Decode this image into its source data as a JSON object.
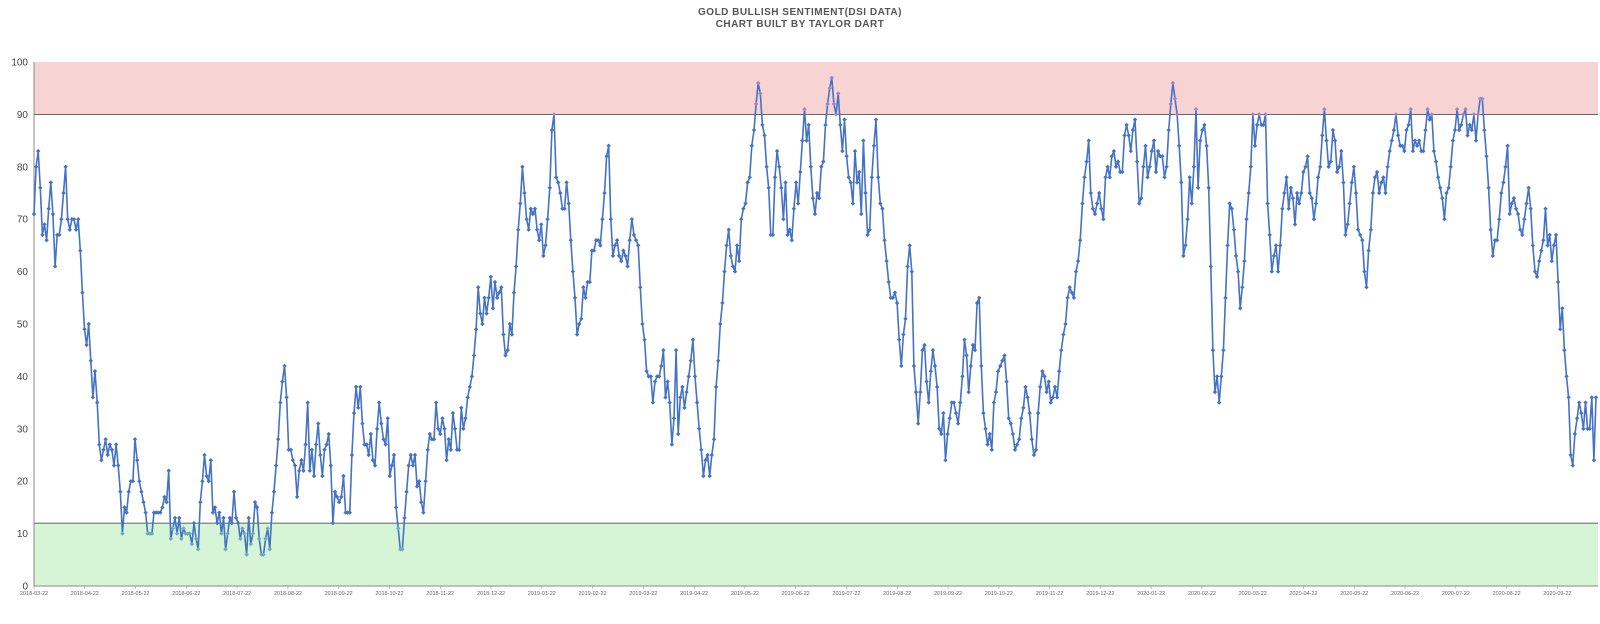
{
  "chart_data": {
    "type": "line",
    "title": "GOLD BULLISH SENTIMENT(DSI DATA)",
    "subtitle": "CHART BUILT BY TAYLOR DART",
    "xlabel": "",
    "ylabel": "",
    "ylim": [
      0,
      100
    ],
    "yticks": [
      "0",
      "10",
      "20",
      "30",
      "40",
      "50",
      "60",
      "70",
      "80",
      "90",
      "100"
    ],
    "xticks": [
      "2018-03-22",
      "2018-04-22",
      "2018-05-22",
      "2018-06-22",
      "2018-07-22",
      "2018-08-22",
      "2018-09-22",
      "2018-10-22",
      "2018-11-22",
      "2018-12-22",
      "2019-01-22",
      "2019-02-22",
      "2019-03-22",
      "2019-04-22",
      "2019-05-22",
      "2019-06-22",
      "2019-07-22",
      "2019-08-22",
      "2019-09-22",
      "2019-10-22",
      "2019-11-22",
      "2019-12-22",
      "2020-01-22",
      "2020-02-22",
      "2020-03-22",
      "2020-04-22",
      "2020-05-22",
      "2020-06-22",
      "2020-07-22",
      "2020-08-22",
      "2020-09-22"
    ],
    "grid": false,
    "bands": [
      {
        "name": "extreme-bullish-zone",
        "from": 90,
        "to": 100,
        "color": "#f4c4c4"
      },
      {
        "name": "extreme-bearish-zone",
        "from": 0,
        "to": 12,
        "color": "#c8f0c8"
      }
    ],
    "series": [
      {
        "color": "#4472c4",
        "values": [
          71,
          80,
          83,
          76,
          67,
          69,
          66,
          72,
          77,
          71,
          61,
          67,
          67,
          70,
          75,
          80,
          70,
          68,
          70,
          70,
          68,
          70,
          64,
          56,
          49,
          46,
          50,
          43,
          36,
          41,
          35,
          27,
          24,
          26,
          28,
          25,
          27,
          26,
          23,
          27,
          23,
          18,
          10,
          15,
          14,
          18,
          20,
          20,
          28,
          24,
          20,
          18,
          16,
          14,
          10,
          10,
          10,
          14,
          14,
          14,
          14,
          15,
          17,
          16,
          22,
          9,
          11,
          13,
          10,
          13,
          9,
          11,
          10,
          10,
          10,
          8,
          12,
          9,
          7,
          16,
          20,
          25,
          21,
          20,
          24,
          14,
          15,
          12,
          14,
          10,
          13,
          7,
          10,
          13,
          12,
          18,
          13,
          12,
          9,
          11,
          10,
          6,
          13,
          8,
          10,
          16,
          15,
          9,
          6,
          6,
          9,
          11,
          7,
          14,
          18,
          23,
          28,
          35,
          39,
          42,
          36,
          26,
          26,
          24,
          23,
          17,
          22,
          24,
          22,
          27,
          35,
          22,
          26,
          21,
          27,
          31,
          25,
          21,
          26,
          27,
          29,
          23,
          12,
          18,
          17,
          16,
          17,
          21,
          14,
          14,
          14,
          25,
          33,
          38,
          34,
          38,
          31,
          27,
          27,
          25,
          29,
          24,
          23,
          30,
          35,
          31,
          28,
          27,
          32,
          21,
          23,
          25,
          15,
          11,
          7,
          7,
          13,
          18,
          23,
          25,
          23,
          25,
          19,
          20,
          16,
          14,
          20,
          26,
          29,
          28,
          28,
          35,
          30,
          29,
          32,
          30,
          24,
          28,
          26,
          33,
          30,
          26,
          26,
          34,
          30,
          32,
          36,
          38,
          40,
          44,
          49,
          57,
          52,
          50,
          55,
          52,
          55,
          59,
          53,
          58,
          55,
          56,
          57,
          48,
          44,
          45,
          50,
          48,
          56,
          61,
          68,
          73,
          80,
          75,
          70,
          68,
          72,
          71,
          72,
          68,
          66,
          69,
          63,
          65,
          70,
          76,
          87,
          90,
          78,
          77,
          75,
          72,
          72,
          77,
          73,
          66,
          60,
          55,
          48,
          50,
          51,
          57,
          55,
          58,
          58,
          64,
          64,
          66,
          66,
          65,
          70,
          75,
          82,
          84,
          70,
          63,
          65,
          66,
          63,
          62,
          64,
          63,
          61,
          66,
          70,
          67,
          66,
          65,
          57,
          50,
          47,
          41,
          40,
          40,
          35,
          39,
          40,
          40,
          42,
          45,
          36,
          39,
          35,
          27,
          32,
          45,
          29,
          36,
          38,
          34,
          37,
          40,
          43,
          47,
          40,
          35,
          30,
          26,
          21,
          24,
          25,
          21,
          25,
          28,
          38,
          43,
          50,
          54,
          60,
          65,
          68,
          63,
          61,
          60,
          65,
          62,
          70,
          72,
          73,
          77,
          78,
          84,
          87,
          92,
          96,
          94,
          88,
          86,
          80,
          76,
          67,
          67,
          78,
          83,
          80,
          76,
          70,
          77,
          67,
          68,
          66,
          72,
          77,
          73,
          79,
          85,
          91,
          85,
          88,
          80,
          74,
          71,
          75,
          74,
          80,
          81,
          88,
          92,
          95,
          97,
          92,
          90,
          94,
          88,
          83,
          89,
          82,
          78,
          77,
          73,
          83,
          77,
          79,
          71,
          85,
          75,
          67,
          68,
          78,
          84,
          89,
          78,
          73,
          72,
          66,
          62,
          58,
          55,
          55,
          56,
          54,
          47,
          42,
          48,
          51,
          61,
          65,
          60,
          42,
          37,
          31,
          37,
          45,
          46,
          39,
          35,
          41,
          45,
          42,
          38,
          30,
          29,
          33,
          24,
          29,
          32,
          35,
          35,
          33,
          31,
          35,
          40,
          47,
          44,
          37,
          42,
          46,
          45,
          54,
          55,
          42,
          33,
          30,
          27,
          29,
          26,
          35,
          37,
          41,
          42,
          43,
          44,
          39,
          32,
          31,
          29,
          26,
          27,
          28,
          32,
          34,
          38,
          36,
          33,
          28,
          25,
          26,
          33,
          38,
          41,
          40,
          37,
          39,
          35,
          36,
          38,
          36,
          41,
          45,
          48,
          50,
          55,
          57,
          56,
          55,
          60,
          62,
          66,
          73,
          78,
          81,
          85,
          75,
          72,
          71,
          73,
          75,
          72,
          70,
          78,
          80,
          78,
          82,
          83,
          80,
          81,
          79,
          79,
          86,
          88,
          86,
          83,
          87,
          89,
          81,
          73,
          74,
          80,
          84,
          78,
          80,
          83,
          85,
          79,
          83,
          82,
          82,
          78,
          80,
          87,
          92,
          96,
          93,
          90,
          84,
          77,
          63,
          65,
          70,
          78,
          73,
          80,
          91,
          76,
          85,
          87,
          88,
          84,
          76,
          61,
          45,
          37,
          40,
          35,
          40,
          45,
          55,
          65,
          73,
          72,
          68,
          63,
          60,
          53,
          57,
          62,
          70,
          75,
          80,
          90,
          84,
          88,
          90,
          88,
          88,
          90,
          73,
          67,
          60,
          63,
          65,
          60,
          65,
          72,
          75,
          78,
          72,
          76,
          74,
          69,
          75,
          73,
          75,
          79,
          80,
          82,
          75,
          74,
          70,
          73,
          78,
          80,
          86,
          91,
          85,
          80,
          81,
          87,
          85,
          79,
          80,
          83,
          77,
          67,
          69,
          73,
          77,
          80,
          75,
          68,
          67,
          66,
          60,
          57,
          64,
          68,
          75,
          78,
          79,
          75,
          77,
          78,
          75,
          80,
          83,
          85,
          87,
          90,
          86,
          84,
          84,
          83,
          87,
          88,
          91,
          83,
          85,
          84,
          85,
          83,
          83,
          87,
          91,
          89,
          90,
          83,
          81,
          78,
          76,
          74,
          70,
          75,
          76,
          80,
          85,
          87,
          91,
          87,
          88,
          90,
          91,
          86,
          88,
          87,
          90,
          85,
          90,
          93,
          93,
          87,
          82,
          76,
          68,
          63,
          66,
          66,
          70,
          75,
          77,
          80,
          84,
          71,
          73,
          74,
          72,
          71,
          68,
          67,
          70,
          73,
          76,
          72,
          65,
          60,
          59,
          62,
          64,
          66,
          72,
          65,
          67,
          62,
          65,
          67,
          58,
          49,
          53,
          45,
          40,
          36,
          25,
          23,
          29,
          32,
          35,
          33,
          30,
          35,
          30,
          30,
          36,
          24,
          36
        ]
      }
    ]
  }
}
